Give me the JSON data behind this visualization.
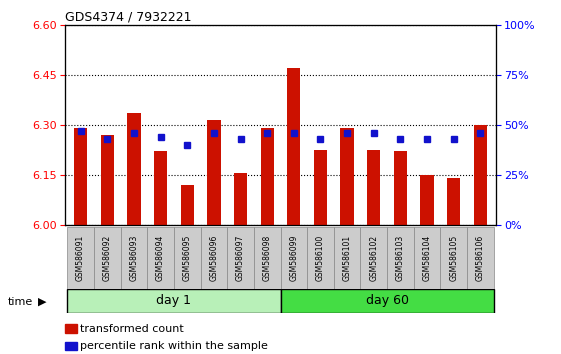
{
  "title": "GDS4374 / 7932221",
  "samples": [
    "GSM586091",
    "GSM586092",
    "GSM586093",
    "GSM586094",
    "GSM586095",
    "GSM586096",
    "GSM586097",
    "GSM586098",
    "GSM586099",
    "GSM586100",
    "GSM586101",
    "GSM586102",
    "GSM586103",
    "GSM586104",
    "GSM586105",
    "GSM586106"
  ],
  "red_values": [
    6.29,
    6.27,
    6.335,
    6.22,
    6.12,
    6.315,
    6.155,
    6.29,
    6.47,
    6.225,
    6.29,
    6.225,
    6.22,
    6.15,
    6.14,
    6.3
  ],
  "blue_pct": [
    47,
    43,
    46,
    44,
    40,
    46,
    43,
    46,
    46,
    43,
    46,
    46,
    43,
    43,
    43,
    46
  ],
  "ylim_left": [
    6.0,
    6.6
  ],
  "ylim_right": [
    0,
    100
  ],
  "yticks_left": [
    6.0,
    6.15,
    6.3,
    6.45,
    6.6
  ],
  "yticks_right": [
    0,
    25,
    50,
    75,
    100
  ],
  "groups": [
    {
      "label": "day 1",
      "start": 0,
      "end": 8,
      "color": "#b8f0b8"
    },
    {
      "label": "day 60",
      "start": 8,
      "end": 16,
      "color": "#44dd44"
    }
  ],
  "bar_color": "#cc1100",
  "dot_color": "#1111cc",
  "bar_width": 0.5,
  "tick_label_bg": "#cccccc",
  "legend_items": [
    {
      "label": "transformed count",
      "color": "#cc1100"
    },
    {
      "label": "percentile rank within the sample",
      "color": "#1111cc"
    }
  ],
  "n_day1": 8,
  "n_day60": 8
}
